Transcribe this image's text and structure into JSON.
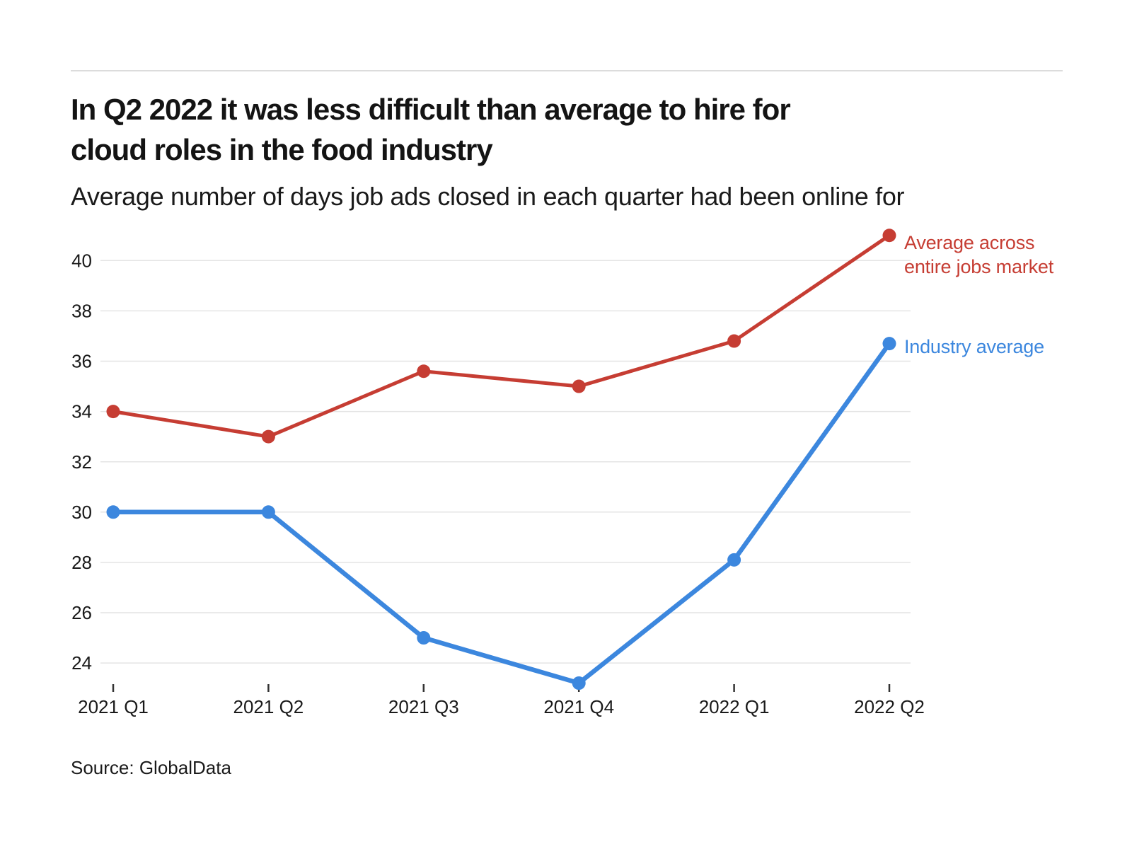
{
  "header": {
    "title": "In Q2 2022 it was less difficult than average to hire for cloud roles in the food industry",
    "title_lines": [
      "In Q2 2022 it was less difficult than average to hire for",
      "cloud roles in the food industry"
    ],
    "subtitle": "Average number of days job ads closed in each quarter had been online for"
  },
  "legend": {
    "market_label": "Average across entire jobs market",
    "industry_label": "Industry average"
  },
  "footer": {
    "source": "Source: GlobalData"
  },
  "colors": {
    "market_red": "#c63d33",
    "industry_blue": "#3c87de",
    "gridline": "#e4e4e4",
    "axis_text": "#1a1a1a",
    "tick": "#333333",
    "divider": "#dcdcdc"
  },
  "chart_data": {
    "type": "line",
    "title": "In Q2 2022 it was less difficult than average to hire for cloud roles in the food industry",
    "subtitle": "Average number of days job ads closed in each quarter had been online for",
    "categories": [
      "2021 Q1",
      "2021 Q2",
      "2021 Q3",
      "2021 Q4",
      "2022 Q1",
      "2022 Q2"
    ],
    "series": [
      {
        "name": "Average across entire jobs market",
        "color": "#c63d33",
        "values": [
          34,
          33,
          35.6,
          35,
          36.8,
          41
        ]
      },
      {
        "name": "Industry average",
        "color": "#3c87de",
        "values": [
          30,
          30,
          25,
          23.2,
          28.1,
          36.7
        ]
      }
    ],
    "xlabel": "",
    "ylabel": "",
    "yticks": [
      24,
      26,
      28,
      30,
      32,
      34,
      36,
      38,
      40
    ],
    "ylim": [
      23,
      41.3
    ],
    "grid": true,
    "legend_position": "right-of-last-point",
    "source": "Source: GlobalData"
  }
}
